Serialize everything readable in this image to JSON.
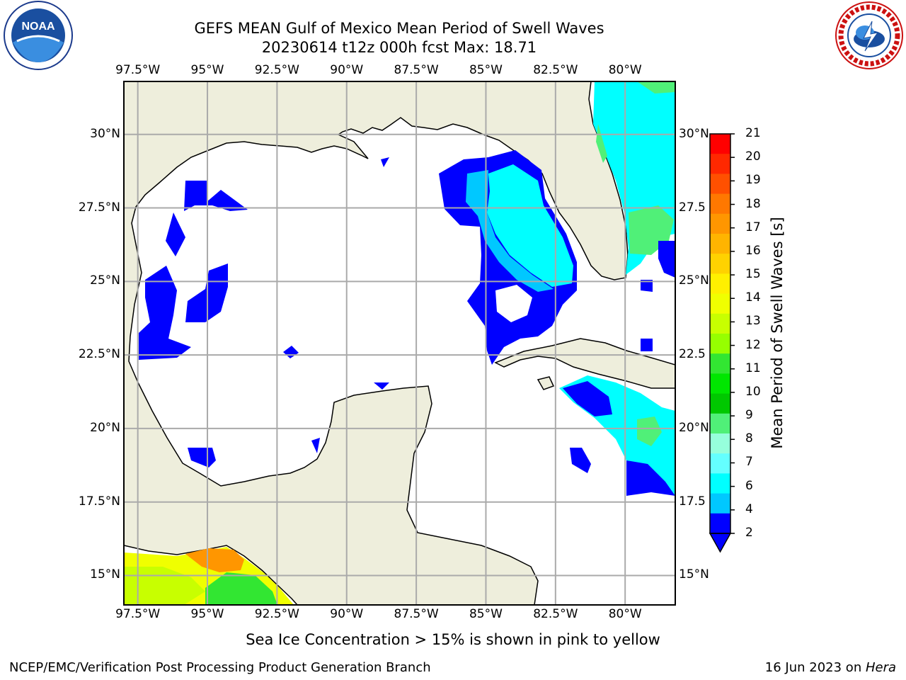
{
  "title_line1": "GEFS MEAN Gulf of Mexico Mean Period of Swell Waves",
  "title_line2": "20230614 t12z 000h fcst   Max: 18.71",
  "subtitle": "Sea Ice Concentration > 15% is shown in pink to yellow",
  "footer_left": "NCEP/EMC/Verification Post Processing Product Generation Branch",
  "footer_date": "16 Jun 2023 on ",
  "footer_host": "Hera",
  "logo_left_text": "NOAA",
  "logo_right_text": "NATIONAL WEATHER SERVICE",
  "lon_labels": [
    "97.5°W",
    "95°W",
    "92.5°W",
    "90°W",
    "87.5°W",
    "85°W",
    "82.5°W",
    "80°W"
  ],
  "lat_labels": [
    "30°N",
    "27.5°N",
    "25°N",
    "22.5°N",
    "20°N",
    "17.5°N",
    "15°N"
  ],
  "lat_labels_right": [
    "30°N",
    "27.5",
    "25°N",
    "22.5",
    "20°N",
    "17.5",
    "15°N"
  ],
  "colorbar": {
    "title": "Mean Period of Swell Waves [s]",
    "ticks": [
      "21",
      "20",
      "19",
      "18",
      "17",
      "16",
      "15",
      "14",
      "13",
      "12",
      "11",
      "10",
      "9",
      "8",
      "7",
      "6",
      "4",
      "2"
    ],
    "colors": [
      "#ff0000",
      "#ff2800",
      "#ff5000",
      "#ff7800",
      "#ff9600",
      "#ffb400",
      "#ffd200",
      "#fff000",
      "#f0ff00",
      "#c8ff00",
      "#96ff00",
      "#32e632",
      "#00e600",
      "#00c800",
      "#50f078",
      "#96ffdc",
      "#64ffff",
      "#00ffff",
      "#00c8ff",
      "#0000ff"
    ]
  },
  "map": {
    "ocean_color": "#ffffff",
    "land_color": "#eeeedc",
    "extent": {
      "lon_min": -98.0,
      "lon_max": -78.2,
      "lat_min": 14.0,
      "lat_max": 31.8
    }
  }
}
